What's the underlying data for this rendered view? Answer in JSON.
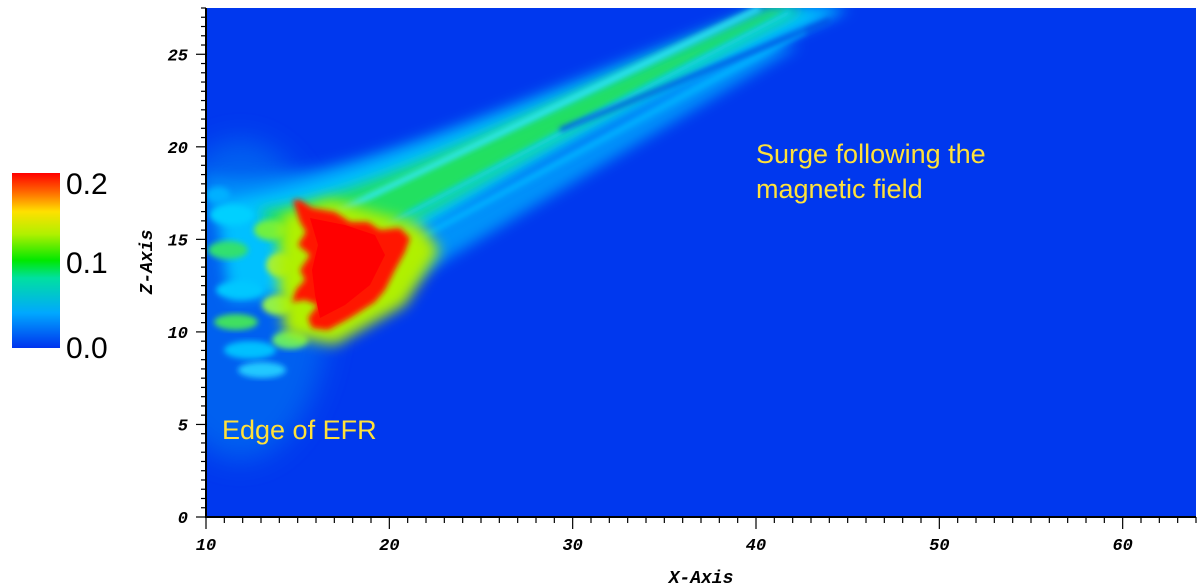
{
  "chart_data": {
    "type": "heatmap",
    "title": "",
    "xlabel": "X-Axis",
    "ylabel": "Z-Axis",
    "xlim": [
      10,
      64
    ],
    "ylim": [
      0,
      27.5
    ],
    "xticks": [
      10,
      20,
      30,
      40,
      50,
      60
    ],
    "yticks": [
      0,
      5,
      10,
      15,
      20,
      25
    ],
    "colorbar": {
      "range": [
        0.0,
        0.2
      ],
      "ticks": [
        "0.0",
        "0.1",
        "0.2"
      ],
      "colormap": [
        "#0033ee",
        "#00bbff",
        "#00e86a",
        "#9cf000",
        "#ffe000",
        "#ff3000",
        "#ff0000"
      ]
    },
    "features": [
      {
        "name": "high-density core",
        "x": [
          15,
          22
        ],
        "z": [
          10,
          17
        ],
        "value": 0.2
      },
      {
        "name": "surge jet",
        "from": [
          17,
          16
        ],
        "to": [
          46,
          27.5
        ],
        "value": 0.08
      },
      {
        "name": "lower flank",
        "from": [
          22,
          11
        ],
        "to": [
          52,
          25
        ],
        "value": 0.04
      }
    ],
    "annotations": [
      {
        "text": "Surge following the",
        "x": 40,
        "z": 19
      },
      {
        "text": "magnetic field",
        "x": 40,
        "z": 17
      },
      {
        "text": "Edge of EFR",
        "x": 11.5,
        "z": 4
      }
    ]
  }
}
